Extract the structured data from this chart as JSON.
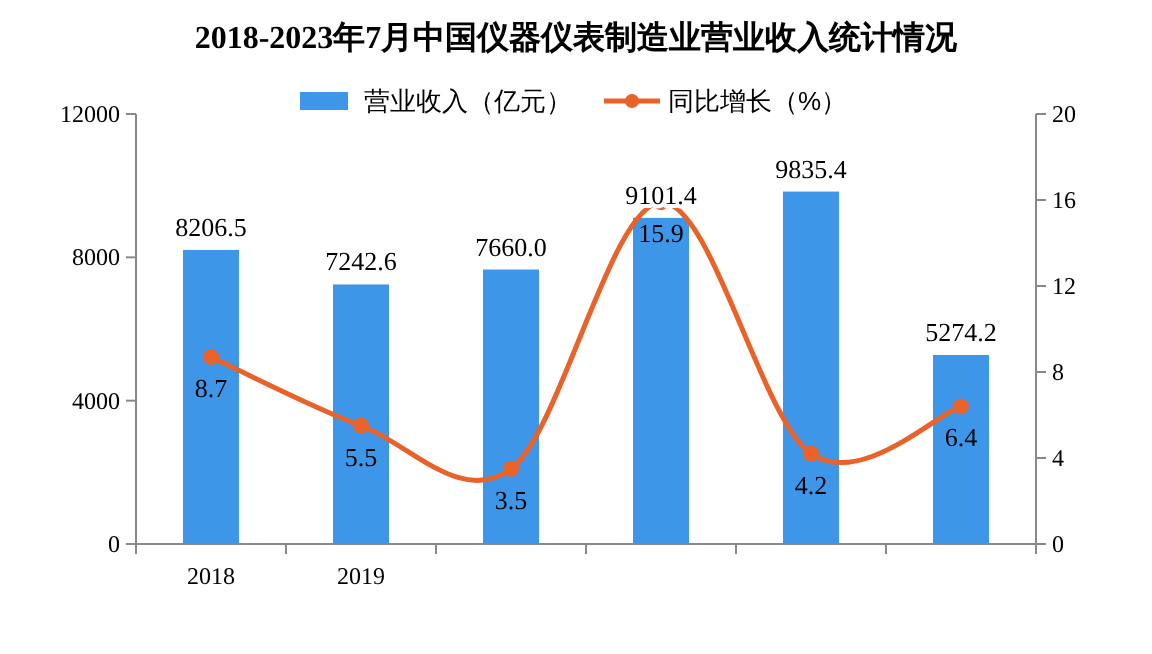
{
  "chart_data": {
    "type": "bar",
    "title": "2018-2023年7月中国仪器仪表制造业营业收入统计情况",
    "categories": [
      "2018",
      "2019",
      null,
      null,
      null,
      null
    ],
    "series": [
      {
        "name": "营业收入（亿元）",
        "color": "#3d96e8",
        "values": [
          8206.5,
          7242.6,
          7660.0,
          9101.4,
          9835.4,
          5274.2
        ],
        "value_labels": [
          "8206.5",
          "7242.6",
          "7660.0",
          "9101.4",
          "9835.4",
          "5274.2"
        ]
      },
      {
        "name": "同比增长（%）",
        "type": "line",
        "axis": "y2",
        "color": "#e8622a",
        "marker": "circle",
        "values": [
          8.7,
          5.5,
          3.5,
          15.9,
          4.2,
          6.4
        ],
        "value_labels": [
          "8.7",
          "5.5",
          "3.5",
          "15.9",
          "4.2",
          "6.4"
        ]
      }
    ],
    "ylim": [
      0,
      12000
    ],
    "yticks": [
      0,
      4000,
      8000,
      12000
    ],
    "y2lim": [
      0,
      20
    ],
    "y2ticks": [
      0,
      4,
      8,
      12,
      16,
      20
    ],
    "legend": "top",
    "grid": false
  }
}
